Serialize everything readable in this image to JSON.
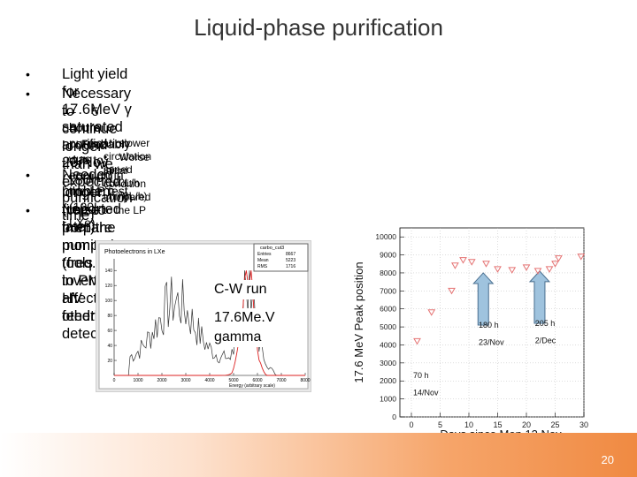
{
  "slide": {
    "title": "Liquid-phase purification",
    "page_number": "20"
  },
  "bullets": [
    {
      "bullet": "•",
      "text": "Light yield for 17.6MeV γ saturated around 23/Nov (180h purification time)"
    },
    {
      "bullet": "•",
      "text": "Necessary to continue longer than we expected"
    },
    {
      "bullet": "–",
      "text": "5 hours purification was enough in the LP test (100L LXe)"
    },
    {
      "bullet": "–",
      "text": "Probably due to"
    },
    {
      "bullet": "•",
      "text": "slower circulation speed (100L/h → 70L/h)"
    },
    {
      "bullet": "•",
      "text": "Worse initial condition compared to the LP"
    },
    {
      "bullet": "•",
      "text": "Needed longer time to prepare monitoring tools due to PMT HV feedthru"
    },
    {
      "bullet": "",
      "text": "problem (reported later)"
    },
    {
      "bullet": "•",
      "text": "Noise from the pump (freq. inverter?) affected other detectors"
    }
  ],
  "histogram": {
    "title": "Photoelectrons in LXe",
    "stats_box": {
      "name": "carbo_cut3",
      "rows": [
        {
          "label": "Entries",
          "value": "8667"
        },
        {
          "label": "Mean",
          "value": "5223"
        },
        {
          "label": "RMS",
          "value": "1716"
        }
      ]
    },
    "x_ticks": [
      "0",
      "1000",
      "2000",
      "3000",
      "4000",
      "5000",
      "6000",
      "7000",
      "8000"
    ],
    "y_ticks": [
      "20",
      "40",
      "60",
      "80",
      "100",
      "120",
      "140"
    ],
    "x_label": "Energy (arbitrary scale)",
    "annotation_run": "C-W run",
    "annotation_gamma_line1": "17.6Me.V",
    "annotation_gamma_line2": "gamma",
    "colors": {
      "black_curve": "#333333",
      "red_curve": "#dd2222"
    }
  },
  "chart_data": {
    "type": "scatter",
    "xlabel": "Days since Mon 12 Nov",
    "ylabel": "17.6 MeV Peak position",
    "xlim": [
      -2,
      30
    ],
    "ylim": [
      0,
      10500
    ],
    "x_ticks": [
      0,
      5,
      10,
      15,
      20,
      25,
      30
    ],
    "y_ticks": [
      0,
      1000,
      2000,
      3000,
      4000,
      5000,
      6000,
      7000,
      8000,
      9000,
      10000
    ],
    "grid": true,
    "marker": "down-triangle",
    "marker_color": "#e57373",
    "series": [
      {
        "x": [
          1.0,
          3.5,
          7.0,
          7.6,
          9.0,
          10.5,
          13.0,
          15.0,
          17.5,
          20.0,
          22.0,
          24.0,
          25.0,
          25.6,
          29.5
        ],
        "y": [
          4200,
          5800,
          7000,
          8400,
          8700,
          8600,
          8500,
          8200,
          8150,
          8300,
          8100,
          8200,
          8500,
          8800,
          8900
        ]
      }
    ],
    "annotations": [
      {
        "text": "70 h",
        "x": 0.3,
        "y": 2150
      },
      {
        "text": "14/Nov",
        "x": 0.3,
        "y": 1200
      },
      {
        "text": "180 h",
        "x": 11.7,
        "y": 4950
      },
      {
        "text": "23/Nov",
        "x": 11.7,
        "y": 4000
      },
      {
        "text": "205 h",
        "x": 21.5,
        "y": 5050
      },
      {
        "text": "2/Dec",
        "x": 21.5,
        "y": 4100
      }
    ],
    "arrows": [
      {
        "x": 12.5,
        "y_from": 5100,
        "y_to": 8000,
        "color": "#9fc3de"
      },
      {
        "x": 22.3,
        "y_from": 5200,
        "y_to": 8100,
        "color": "#9fc3de"
      }
    ]
  }
}
